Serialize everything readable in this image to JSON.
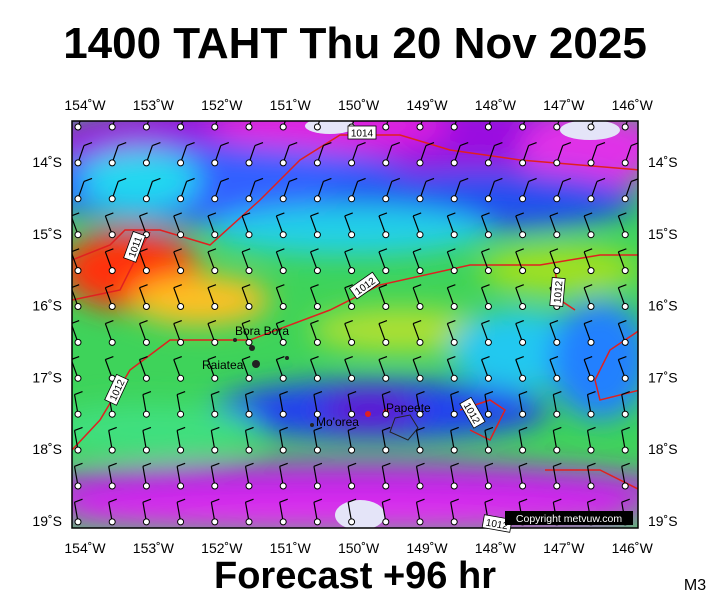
{
  "header": {
    "title": "1400 TAHT Thu 20 Nov 2025"
  },
  "map": {
    "lon_ticks": [
      "154˚W",
      "153˚W",
      "152˚W",
      "151˚W",
      "150˚W",
      "149˚W",
      "148˚W",
      "147˚W",
      "146˚W"
    ],
    "lat_ticks": [
      "14˚S",
      "15˚S",
      "16˚S",
      "17˚S",
      "18˚S",
      "19˚S"
    ],
    "places": [
      "Bora Bora",
      "Raiatea",
      "Mo'orea",
      "Papeete"
    ],
    "isobar_labels": [
      "1014",
      "1011",
      "1012",
      "1012",
      "1012",
      "1012",
      "1012"
    ],
    "copyright": "Copyright metvuw.com"
  },
  "footer": {
    "forecast": "Forecast +96 hr",
    "model": "M3"
  }
}
